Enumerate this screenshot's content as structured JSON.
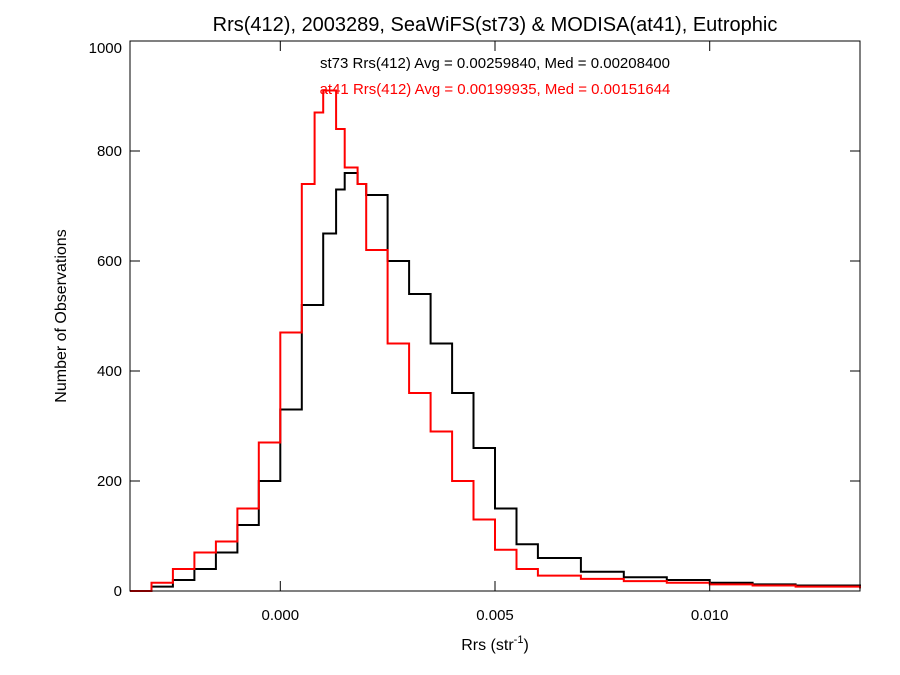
{
  "chart_data": {
    "type": "line",
    "subtype": "step-histogram",
    "title": "Rrs(412), 2003289, SeaWiFS(st73) & MODISA(at41), Eutrophic",
    "xlabel": {
      "base": "Rrs (str",
      "sup": "-1",
      "suffix": ")"
    },
    "ylabel": "Number of Observations",
    "xlim": [
      -0.0035,
      0.0135
    ],
    "ylim": [
      0,
      1000
    ],
    "xticks": [
      0.0,
      0.005,
      0.01
    ],
    "xtick_labels": [
      "0.000",
      "0.005",
      "0.010"
    ],
    "yticks": [
      0,
      200,
      400,
      600,
      800,
      1000
    ],
    "ytick_labels": [
      "0",
      "200",
      "400",
      "600",
      "800",
      "1000"
    ],
    "grid": false,
    "annotations": [
      {
        "text": "st73 Rrs(412) Avg = 0.00259840, Med = 0.00208400",
        "color": "#000000"
      },
      {
        "text": "at41 Rrs(412) Avg = 0.00199935, Med = 0.00151644",
        "color": "#ff0000"
      }
    ],
    "series": [
      {
        "color": "#000000",
        "x": [
          -0.0035,
          -0.003,
          -0.0025,
          -0.002,
          -0.0015,
          -0.001,
          -0.0005,
          0.0,
          0.0005,
          0.001,
          0.0013,
          0.0015,
          0.0018,
          0.002,
          0.0025,
          0.003,
          0.0035,
          0.004,
          0.0045,
          0.005,
          0.0055,
          0.006,
          0.007,
          0.008,
          0.009,
          0.01,
          0.011,
          0.012,
          0.0135
        ],
        "y": [
          0,
          8,
          20,
          40,
          70,
          120,
          200,
          330,
          520,
          650,
          730,
          760,
          740,
          720,
          600,
          540,
          450,
          360,
          260,
          150,
          85,
          60,
          35,
          25,
          20,
          15,
          12,
          10,
          5
        ]
      },
      {
        "color": "#ff0000",
        "x": [
          -0.0035,
          -0.003,
          -0.0025,
          -0.002,
          -0.0015,
          -0.001,
          -0.0005,
          0.0,
          0.0005,
          0.0008,
          0.001,
          0.0013,
          0.0015,
          0.0018,
          0.002,
          0.0025,
          0.003,
          0.0035,
          0.004,
          0.0045,
          0.005,
          0.0055,
          0.006,
          0.007,
          0.008,
          0.009,
          0.01,
          0.011,
          0.012,
          0.0135
        ],
        "y": [
          0,
          15,
          40,
          70,
          90,
          150,
          270,
          470,
          740,
          870,
          910,
          840,
          770,
          740,
          620,
          450,
          360,
          290,
          200,
          130,
          75,
          40,
          28,
          22,
          18,
          15,
          12,
          10,
          8,
          5
        ]
      }
    ]
  }
}
